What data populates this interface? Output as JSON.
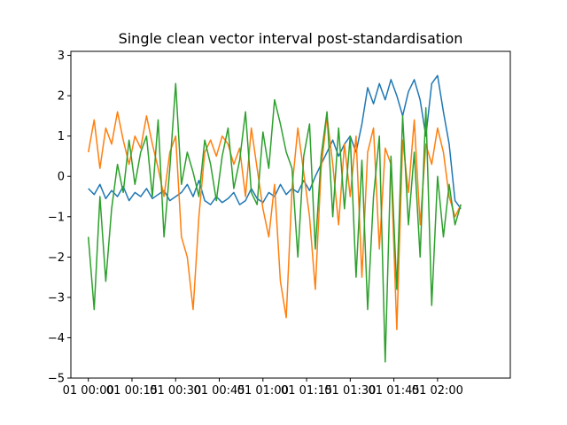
{
  "chart_data": {
    "type": "line",
    "title": "Single clean vector interval post-standardisation",
    "xlabel": "",
    "ylabel": "",
    "grid": false,
    "x_unit": "minutes (elapsed)",
    "xlim": [
      -6,
      145
    ],
    "ylim": [
      -5,
      3.1
    ],
    "x_ticks": [
      {
        "value": 0,
        "label": "01 00:00"
      },
      {
        "value": 15,
        "label": "01 00:15"
      },
      {
        "value": 30,
        "label": "01 00:30"
      },
      {
        "value": 45,
        "label": "01 00:45"
      },
      {
        "value": 60,
        "label": "01 01:00"
      },
      {
        "value": 75,
        "label": "01 01:15"
      },
      {
        "value": 90,
        "label": "01 01:30"
      },
      {
        "value": 105,
        "label": "01 01:45"
      },
      {
        "value": 120,
        "label": "01 02:00"
      }
    ],
    "y_ticks": [
      {
        "value": 3,
        "label": "3"
      },
      {
        "value": 2,
        "label": "2"
      },
      {
        "value": 1,
        "label": "1"
      },
      {
        "value": 0,
        "label": "0"
      },
      {
        "value": -1,
        "label": "−1"
      },
      {
        "value": -2,
        "label": "−2"
      },
      {
        "value": -3,
        "label": "−3"
      },
      {
        "value": -4,
        "label": "−4"
      },
      {
        "value": -5,
        "label": "−5"
      }
    ],
    "series": [
      {
        "color": "#1f77b4",
        "x": [
          0,
          2,
          4,
          6,
          8,
          10,
          12,
          14,
          16,
          18,
          20,
          22,
          24,
          26,
          28,
          30,
          32,
          34,
          36,
          38,
          40,
          42,
          44,
          46,
          48,
          50,
          52,
          54,
          56,
          58,
          60,
          62,
          64,
          66,
          68,
          70,
          72,
          74,
          76,
          78,
          80,
          82,
          84,
          86,
          88,
          90,
          92,
          94,
          96,
          98,
          100,
          102,
          104,
          106,
          108,
          110,
          112,
          114,
          116,
          118,
          120,
          122,
          124,
          126,
          128
        ],
        "y": [
          -0.3,
          -0.45,
          -0.2,
          -0.55,
          -0.35,
          -0.5,
          -0.25,
          -0.6,
          -0.4,
          -0.5,
          -0.3,
          -0.55,
          -0.45,
          -0.35,
          -0.6,
          -0.5,
          -0.4,
          -0.2,
          -0.5,
          -0.1,
          -0.6,
          -0.7,
          -0.5,
          -0.65,
          -0.55,
          -0.4,
          -0.7,
          -0.6,
          -0.3,
          -0.55,
          -0.65,
          -0.4,
          -0.5,
          -0.2,
          -0.45,
          -0.3,
          -0.4,
          -0.1,
          -0.35,
          0.0,
          0.3,
          0.6,
          0.9,
          0.5,
          0.8,
          1.0,
          0.6,
          1.3,
          2.2,
          1.8,
          2.3,
          1.9,
          2.4,
          2.0,
          1.5,
          2.1,
          2.4,
          1.9,
          1.0,
          2.3,
          2.5,
          1.6,
          0.8,
          -0.6,
          -0.8
        ]
      },
      {
        "color": "#ff7f0e",
        "x": [
          0,
          2,
          4,
          6,
          8,
          10,
          12,
          14,
          16,
          18,
          20,
          22,
          24,
          26,
          28,
          30,
          32,
          34,
          36,
          38,
          40,
          42,
          44,
          46,
          48,
          50,
          52,
          54,
          56,
          58,
          60,
          62,
          64,
          66,
          68,
          70,
          72,
          74,
          76,
          78,
          80,
          82,
          84,
          86,
          88,
          90,
          92,
          94,
          96,
          98,
          100,
          102,
          104,
          106,
          108,
          110,
          112,
          114,
          116,
          118,
          120,
          122,
          124,
          126,
          128
        ],
        "y": [
          0.6,
          1.4,
          0.2,
          1.2,
          0.8,
          1.6,
          0.9,
          0.3,
          1.0,
          0.7,
          1.5,
          0.8,
          0.2,
          -0.5,
          0.6,
          1.0,
          -1.5,
          -2.0,
          -3.3,
          -1.0,
          0.6,
          0.9,
          0.5,
          1.0,
          0.8,
          0.3,
          0.7,
          -0.5,
          1.2,
          0.2,
          -0.8,
          -1.5,
          -0.2,
          -2.6,
          -3.5,
          -0.3,
          1.2,
          0.1,
          -1.0,
          -2.8,
          0.2,
          1.5,
          0.3,
          -1.2,
          0.8,
          -0.5,
          1.0,
          -2.5,
          0.6,
          1.2,
          -1.8,
          0.7,
          0.3,
          -3.8,
          0.9,
          -0.4,
          1.4,
          -1.2,
          0.8,
          0.3,
          1.2,
          0.6,
          -0.5,
          -1.0,
          -0.7
        ]
      },
      {
        "color": "#2ca02c",
        "x": [
          0,
          2,
          4,
          6,
          8,
          10,
          12,
          14,
          16,
          18,
          20,
          22,
          24,
          26,
          28,
          30,
          32,
          34,
          36,
          38,
          40,
          42,
          44,
          46,
          48,
          50,
          52,
          54,
          56,
          58,
          60,
          62,
          64,
          66,
          68,
          70,
          72,
          74,
          76,
          78,
          80,
          82,
          84,
          86,
          88,
          90,
          92,
          94,
          96,
          98,
          100,
          102,
          104,
          106,
          108,
          110,
          112,
          114,
          116,
          118,
          120,
          122,
          124,
          126,
          128
        ],
        "y": [
          -1.5,
          -3.3,
          -0.5,
          -2.6,
          -0.8,
          0.3,
          -0.4,
          0.9,
          -0.2,
          0.6,
          1.0,
          -0.5,
          1.4,
          -1.5,
          0.2,
          2.3,
          -0.2,
          0.6,
          0.1,
          -0.5,
          0.9,
          0.3,
          -0.6,
          0.5,
          1.2,
          -0.3,
          0.4,
          1.6,
          -0.4,
          -0.7,
          1.1,
          0.2,
          1.9,
          1.3,
          0.6,
          0.2,
          -2.0,
          0.5,
          1.3,
          -1.8,
          0.5,
          1.6,
          -1.0,
          1.2,
          -0.8,
          1.0,
          -2.5,
          0.4,
          -3.3,
          -0.5,
          1.0,
          -4.6,
          0.5,
          -2.8,
          1.5,
          -1.2,
          0.6,
          -2.0,
          1.7,
          -3.2,
          0.0,
          -1.5,
          -0.2,
          -1.2,
          -0.7
        ]
      }
    ]
  }
}
